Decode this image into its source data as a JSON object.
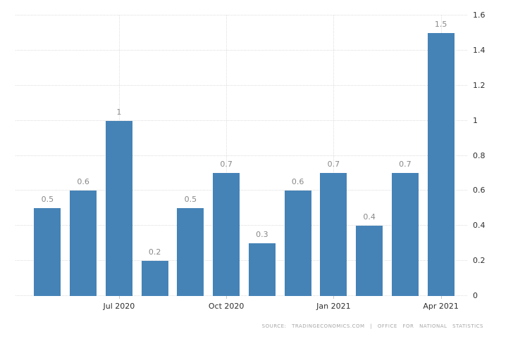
{
  "chart_data": {
    "type": "bar",
    "title": "",
    "values": [
      0.5,
      0.6,
      1,
      0.2,
      0.5,
      0.7,
      0.3,
      0.6,
      0.7,
      0.4,
      0.7,
      1.5
    ],
    "bar_value_labels": [
      "0.5",
      "0.6",
      "1",
      "0.2",
      "0.5",
      "0.7",
      "0.3",
      "0.6",
      "0.7",
      "0.4",
      "0.7",
      "1.5"
    ],
    "x_tick_labels": [
      {
        "slot": 2,
        "label": "Jul 2020"
      },
      {
        "slot": 5,
        "label": "Oct 2020"
      },
      {
        "slot": 8,
        "label": "Jan 2021"
      },
      {
        "slot": 11,
        "label": "Apr 2021"
      }
    ],
    "y_tick_labels": [
      "0",
      "0.2",
      "0.4",
      "0.6",
      "0.8",
      "1",
      "1.2",
      "1.4",
      "1.6"
    ],
    "ylim": [
      0,
      1.6
    ],
    "y_axis_side": "right",
    "grid": "dotted horizontal lines at every y tick; dotted vertical lines at labeled x ticks",
    "legend": "none"
  },
  "colors": {
    "bar": "#4583b7",
    "grid": "#dedede",
    "value_label": "#8a8a8a",
    "axis_label": "#2f2f2f",
    "tick": "#c6c6c6",
    "source": "#a8a8a8",
    "background": "#ffffff"
  },
  "source_note": "SOURCE: TRADINGECONOMICS.COM | OFFICE FOR NATIONAL STATISTICS"
}
